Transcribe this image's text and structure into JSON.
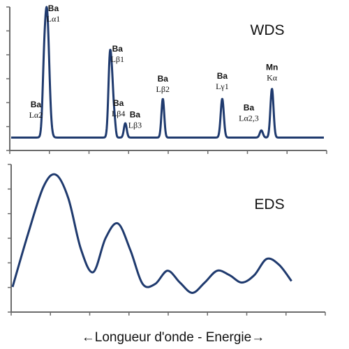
{
  "chart_data": [
    {
      "type": "line",
      "panel_label": "WDS",
      "title": "",
      "xlabel": "",
      "ylabel": "",
      "xlim": [
        0,
        100
      ],
      "ylim": [
        0,
        1
      ],
      "grid": false,
      "series": [
        {
          "color": "#1f3a6e",
          "baseline": 0.09,
          "peaks": [
            {
              "x": 10.4,
              "height": 0.2,
              "width": 0.45
            },
            {
              "x": 11.4,
              "height": 0.89,
              "width": 0.75
            },
            {
              "x": 31.6,
              "height": 0.57,
              "width": 0.5
            },
            {
              "x": 32.4,
              "height": 0.25,
              "width": 0.4
            },
            {
              "x": 33.1,
              "height": 0.1,
              "width": 0.35
            },
            {
              "x": 36.5,
              "height": 0.1,
              "width": 0.45
            },
            {
              "x": 48.5,
              "height": 0.27,
              "width": 0.45
            },
            {
              "x": 67.5,
              "height": 0.27,
              "width": 0.5
            },
            {
              "x": 80.0,
              "height": 0.05,
              "width": 0.5
            },
            {
              "x": 83.4,
              "height": 0.34,
              "width": 0.5
            }
          ]
        }
      ],
      "annotations": [
        {
          "element": "Ba",
          "line": "Lα2",
          "x": 7.9,
          "y": 0.3
        },
        {
          "element": "Ba",
          "line": "Lα1",
          "x": 13.5,
          "y": 0.97
        },
        {
          "element": "Ba",
          "line": "Lβ1",
          "x": 34.0,
          "y": 0.69
        },
        {
          "element": "Ba",
          "line": "Lβ4",
          "x": 34.3,
          "y": 0.31
        },
        {
          "element": "Ba",
          "line": "Lβ3",
          "x": 39.6,
          "y": 0.23
        },
        {
          "element": "Ba",
          "line": "Lβ2",
          "x": 48.5,
          "y": 0.48
        },
        {
          "element": "Ba",
          "line": "Lγ1",
          "x": 67.5,
          "y": 0.5
        },
        {
          "element": "Ba",
          "line": "Lα2,3",
          "x": 76.0,
          "y": 0.28
        },
        {
          "element": "Mn",
          "line": "Kα",
          "x": 83.4,
          "y": 0.56
        }
      ]
    },
    {
      "type": "line",
      "panel_label": "EDS",
      "title": "",
      "xlabel": "",
      "ylabel": "",
      "xlim": [
        0,
        100
      ],
      "ylim": [
        0,
        1
      ],
      "grid": false,
      "series": [
        {
          "color": "#1f3a6e",
          "x": [
            0,
            5,
            10,
            14,
            18,
            22,
            26,
            30,
            34,
            38,
            42,
            46,
            50,
            54,
            58,
            62,
            66,
            70,
            74,
            78,
            82,
            86,
            90
          ],
          "y": [
            0.17,
            0.53,
            0.85,
            0.93,
            0.77,
            0.43,
            0.27,
            0.5,
            0.6,
            0.42,
            0.19,
            0.19,
            0.28,
            0.2,
            0.13,
            0.2,
            0.28,
            0.25,
            0.2,
            0.25,
            0.36,
            0.32,
            0.21
          ]
        }
      ]
    }
  ],
  "footer": {
    "caption": "←Longueur d'onde  -  Energie→"
  }
}
